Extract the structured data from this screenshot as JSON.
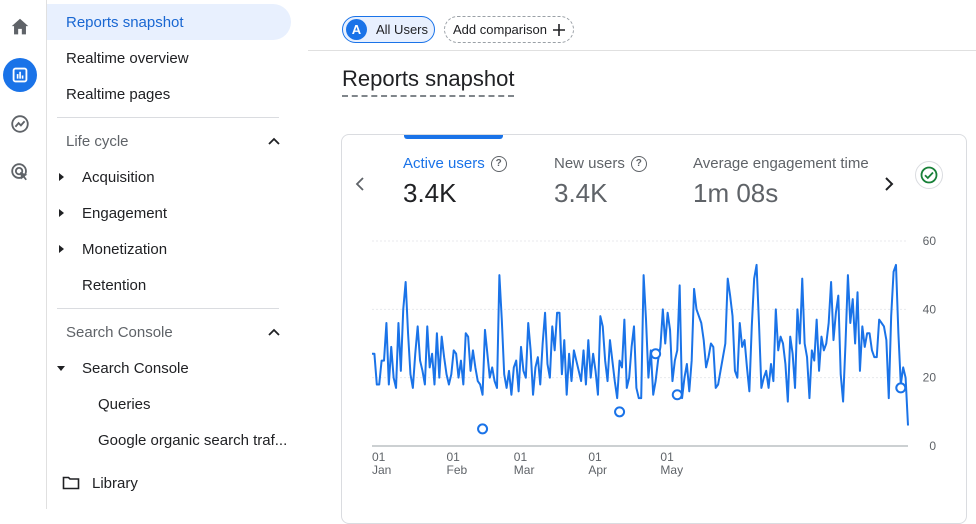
{
  "rail": {
    "items": [
      {
        "name": "home-icon"
      },
      {
        "name": "reports-icon",
        "active": true
      },
      {
        "name": "explore-icon"
      },
      {
        "name": "advertising-icon"
      }
    ]
  },
  "nav": {
    "reports_snapshot": "Reports snapshot",
    "realtime_overview": "Realtime overview",
    "realtime_pages": "Realtime pages",
    "lifecycle_header": "Life cycle",
    "acquisition": "Acquisition",
    "engagement": "Engagement",
    "monetization": "Monetization",
    "retention": "Retention",
    "search_console_header": "Search Console",
    "search_console": "Search Console",
    "queries": "Queries",
    "organic_traffic": "Google organic search traf...",
    "library": "Library"
  },
  "topbar": {
    "all_users_avatar": "A",
    "all_users": "All Users",
    "add_comparison": "Add comparison"
  },
  "page": {
    "title": "Reports snapshot"
  },
  "metrics": [
    {
      "label": "Active users",
      "value": "3.4K",
      "active": true
    },
    {
      "label": "New users",
      "value": "3.4K"
    },
    {
      "label": "Average engagement time p",
      "value": "1m 08s"
    }
  ],
  "chart_data": {
    "type": "line",
    "ylim": [
      0,
      60
    ],
    "y_ticks": [
      "0",
      "20",
      "40",
      "60"
    ],
    "x_ticks": [
      {
        "day": "01",
        "month": "Jan",
        "index": 0
      },
      {
        "day": "01",
        "month": "Feb",
        "index": 31
      },
      {
        "day": "01",
        "month": "Mar",
        "index": 59
      },
      {
        "day": "01",
        "month": "Apr",
        "index": 90
      },
      {
        "day": "01",
        "month": "May",
        "index": 120
      }
    ],
    "series": [
      {
        "color": "#1a73e8",
        "values": [
          27,
          27,
          18,
          18,
          25,
          25,
          36,
          18,
          29,
          20,
          17,
          36,
          22,
          40,
          48,
          33,
          21,
          17,
          27,
          35,
          25,
          22,
          18,
          35,
          23,
          27,
          18,
          33,
          20,
          32,
          26,
          21,
          18,
          21,
          28,
          27,
          20,
          25,
          18,
          33,
          32,
          22,
          28,
          23,
          19,
          18,
          15,
          34,
          27,
          20,
          23,
          19,
          17,
          50,
          37,
          21,
          17,
          22,
          15,
          23,
          25,
          16,
          29,
          22,
          20,
          36,
          28,
          15,
          23,
          26,
          18,
          30,
          39,
          24,
          20,
          35,
          28,
          39,
          39,
          21,
          31,
          15,
          27,
          19,
          28,
          25,
          22,
          19,
          28,
          18,
          31,
          20,
          27,
          22,
          15,
          38,
          35,
          25,
          19,
          31,
          25,
          19,
          14,
          25,
          23,
          37,
          17,
          20,
          29,
          35,
          17,
          14,
          14,
          50,
          37,
          20,
          28,
          15,
          19,
          25,
          29,
          40,
          30,
          39,
          34,
          19,
          25,
          28,
          47,
          14,
          20,
          24,
          16,
          25,
          46,
          40,
          38,
          36,
          31,
          23,
          26,
          30,
          29,
          17,
          18,
          22,
          26,
          30,
          49,
          44,
          38,
          22,
          20,
          36,
          29,
          31,
          23,
          16,
          35,
          49,
          53,
          36,
          17,
          20,
          22,
          17,
          24,
          19,
          40,
          28,
          32,
          30,
          24,
          13,
          32,
          27,
          17,
          40,
          30,
          49,
          30,
          26,
          14,
          28,
          25,
          37,
          22,
          32,
          28,
          30,
          36,
          48,
          31,
          39,
          44,
          21,
          13,
          30,
          50,
          36,
          43,
          30,
          45,
          22,
          35,
          29,
          33,
          33,
          28,
          26,
          26,
          37,
          36,
          35,
          31,
          14,
          38,
          51,
          53,
          33,
          18,
          23,
          20,
          6
        ],
        "markers": [
          {
            "index": 46,
            "value": 5
          },
          {
            "index": 103,
            "value": 10
          },
          {
            "index": 118,
            "value": 27
          },
          {
            "index": 127,
            "value": 15
          }
        ]
      }
    ]
  }
}
